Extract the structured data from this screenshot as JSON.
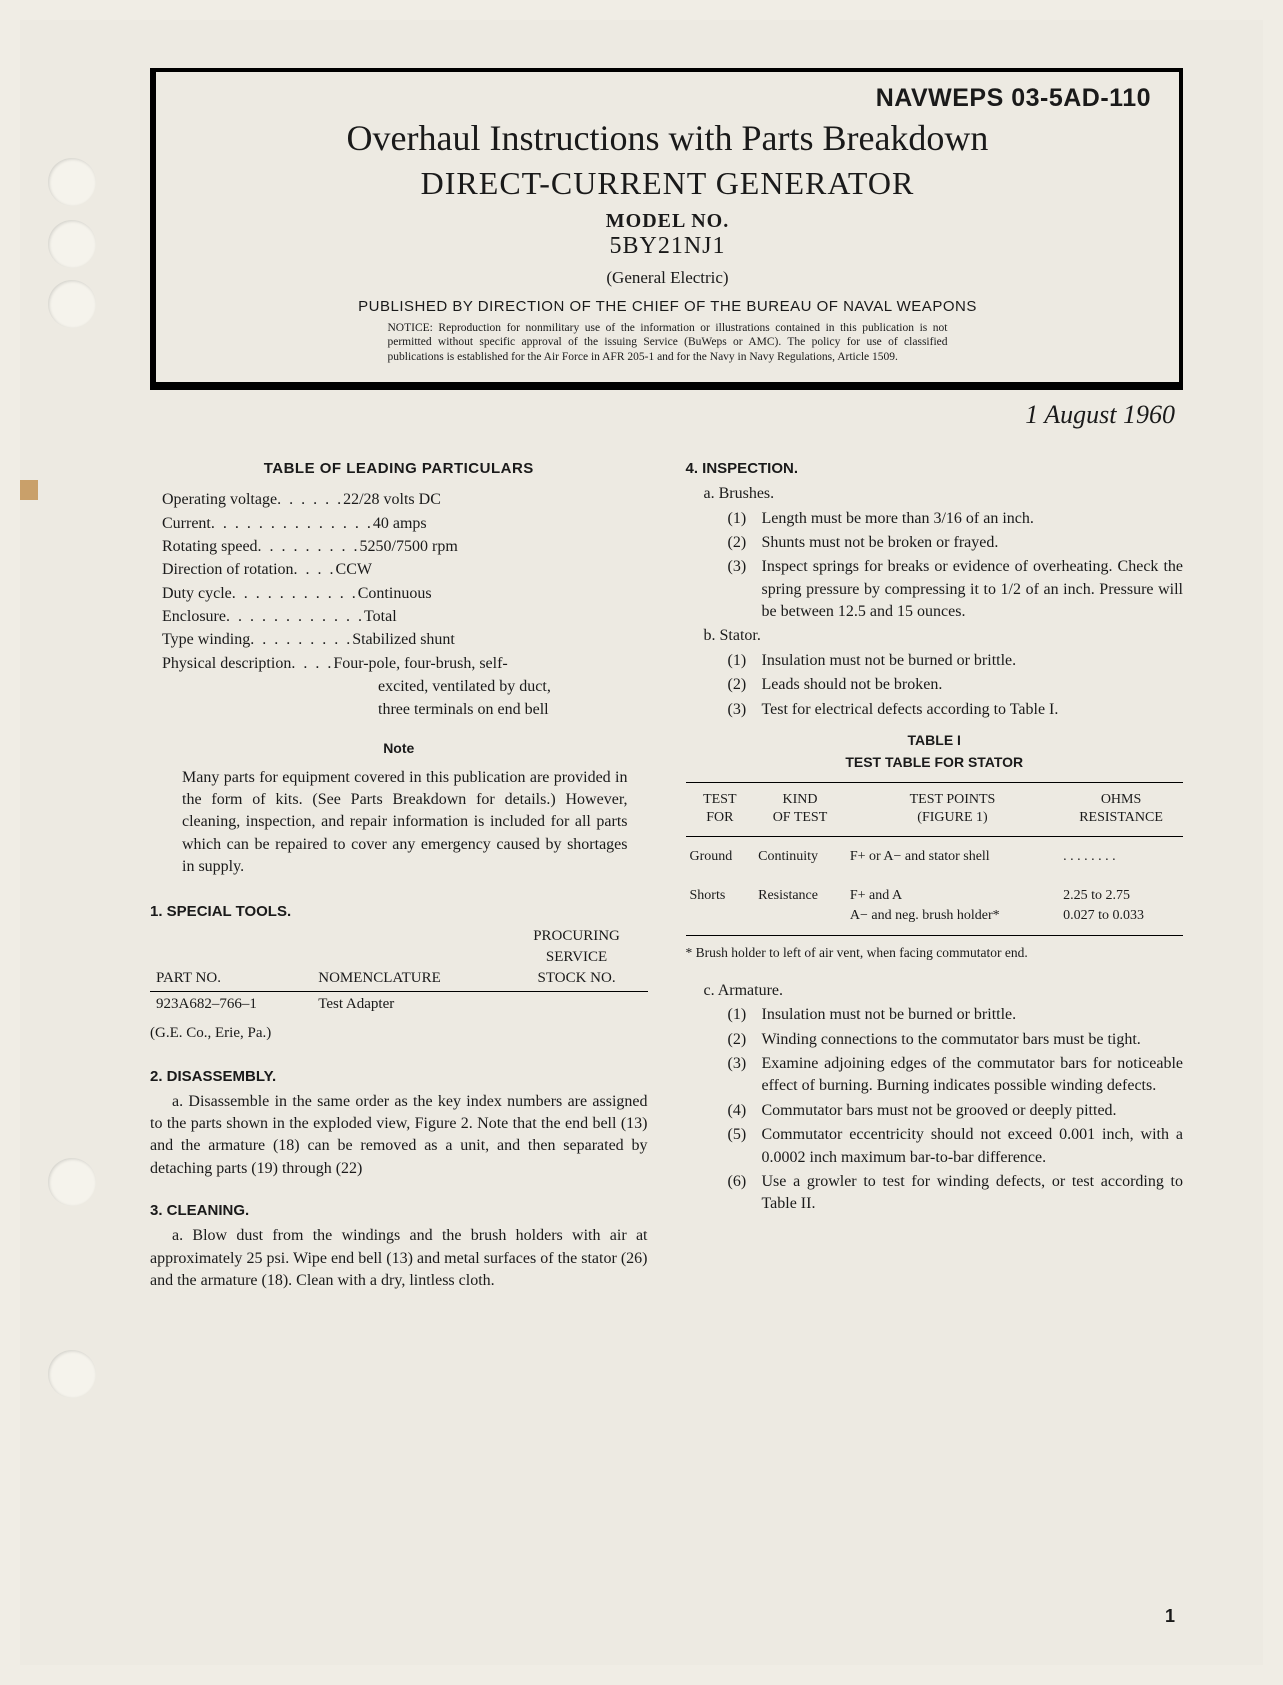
{
  "doc_number": "NAVWEPS 03-5AD-110",
  "main_title": "Overhaul Instructions with Parts Breakdown",
  "sub_title": "DIRECT-CURRENT GENERATOR",
  "model_label": "MODEL NO.",
  "model_no": "5BY21NJ1",
  "manufacturer": "(General Electric)",
  "publisher": "PUBLISHED BY DIRECTION OF THE CHIEF OF THE BUREAU OF NAVAL WEAPONS",
  "notice": "NOTICE: Reproduction for nonmilitary use of the information or illustrations contained in this publication is not permitted without specific approval of the issuing Service (BuWeps or AMC). The policy for use of classified publications is established for the Air Force in AFR 205-1 and for the Navy in Navy Regulations, Article 1509.",
  "date": "1 August 1960",
  "particulars_heading": "TABLE OF LEADING PARTICULARS",
  "particulars": [
    {
      "label": "Operating voltage",
      "dots": ". . . . . .",
      "value": "22/28 volts DC"
    },
    {
      "label": "Current",
      "dots": ". . . . . . . . . . . . . .",
      "value": "40 amps"
    },
    {
      "label": "Rotating speed",
      "dots": ". . . . . . . . .",
      "value": "5250/7500 rpm"
    },
    {
      "label": "Direction of rotation",
      "dots": ". . . .",
      "value": "CCW"
    },
    {
      "label": "Duty cycle",
      "dots": ". . . . . . . . . . .",
      "value": "Continuous"
    },
    {
      "label": "Enclosure",
      "dots": ". . . . . . . . . . . .",
      "value": "Total"
    },
    {
      "label": "Type winding",
      "dots": ". . . . . . . . .",
      "value": "Stabilized shunt"
    },
    {
      "label": "Physical description",
      "dots": ". . . .",
      "value": "Four-pole, four-brush, self-"
    }
  ],
  "phys_desc_cont1": "excited, ventilated by duct,",
  "phys_desc_cont2": "three terminals on end bell",
  "note_heading": "Note",
  "note_body": "Many parts for equipment covered in this publication are provided in the form of kits. (See Parts Breakdown for details.) However, cleaning, inspection, and repair information is included for all parts which can be repaired to cover any emergency caused by shortages in supply.",
  "sec1": {
    "heading": "1. SPECIAL TOOLS.",
    "col1": "PART NO.",
    "col2": "NOMENCLATURE",
    "col3_l1": "PROCURING",
    "col3_l2": "SERVICE",
    "col3_l3": "STOCK NO.",
    "row_partno": "923A682–766–1",
    "row_nomen": "Test Adapter",
    "vendor": "(G.E. Co., Erie, Pa.)"
  },
  "sec2": {
    "heading": "2. DISASSEMBLY.",
    "body": "a. Disassemble in the same order as the key index numbers are assigned to the parts shown in the exploded view, Figure 2. Note that the end bell (13) and the armature (18) can be removed as a unit, and then separated by detaching parts (19) through (22)"
  },
  "sec3": {
    "heading": "3. CLEANING.",
    "body": "a. Blow dust from the windings and the brush holders with air at approximately 25 psi. Wipe end bell (13) and metal surfaces of the stator (26) and the armature (18). Clean with a dry, lintless cloth."
  },
  "sec4": {
    "heading": "4. INSPECTION.",
    "a_label": "a. Brushes.",
    "a_items": [
      "Length must be more than 3/16 of an inch.",
      "Shunts must not be broken or frayed.",
      "Inspect springs for breaks or evidence of overheating. Check the spring pressure by compressing it to 1/2 of an inch. Pressure will be between 12.5 and 15 ounces."
    ],
    "b_label": "b. Stator.",
    "b_items": [
      "Insulation must not be burned or brittle.",
      "Leads should not be broken.",
      "Test for electrical defects according to Table I."
    ],
    "c_label": "c. Armature.",
    "c_items": [
      "Insulation must not be burned or brittle.",
      "Winding connections to the commutator bars must be tight.",
      "Examine adjoining edges of the commutator bars for noticeable effect of burning. Burning indicates possible winding defects.",
      "Commutator bars must not be grooved or deeply pitted.",
      "Commutator eccentricity should not exceed 0.001 inch, with a 0.0002 inch maximum bar-to-bar difference.",
      "Use a growler to test for winding defects, or test according to Table II."
    ]
  },
  "table1": {
    "title": "TABLE I",
    "subtitle": "TEST TABLE FOR STATOR",
    "h1_l1": "TEST",
    "h1_l2": "FOR",
    "h2_l1": "KIND",
    "h2_l2": "OF TEST",
    "h3_l1": "TEST POINTS",
    "h3_l2": "(FIGURE 1)",
    "h4_l1": "OHMS",
    "h4_l2": "RESISTANCE",
    "rows": [
      {
        "c1": "Ground",
        "c2": "Continuity",
        "c3": "F+ or A− and stator shell",
        "c4": ". . . . . . . ."
      },
      {
        "c1": "Shorts",
        "c2": "Resistance",
        "c3": "F+ and A",
        "c4": "2.25 to 2.75"
      },
      {
        "c1": "",
        "c2": "",
        "c3": "A− and neg. brush holder*",
        "c4": "0.027 to 0.033"
      }
    ],
    "footnote": "* Brush holder to left of air vent, when facing commutator end."
  },
  "page_number": "1"
}
